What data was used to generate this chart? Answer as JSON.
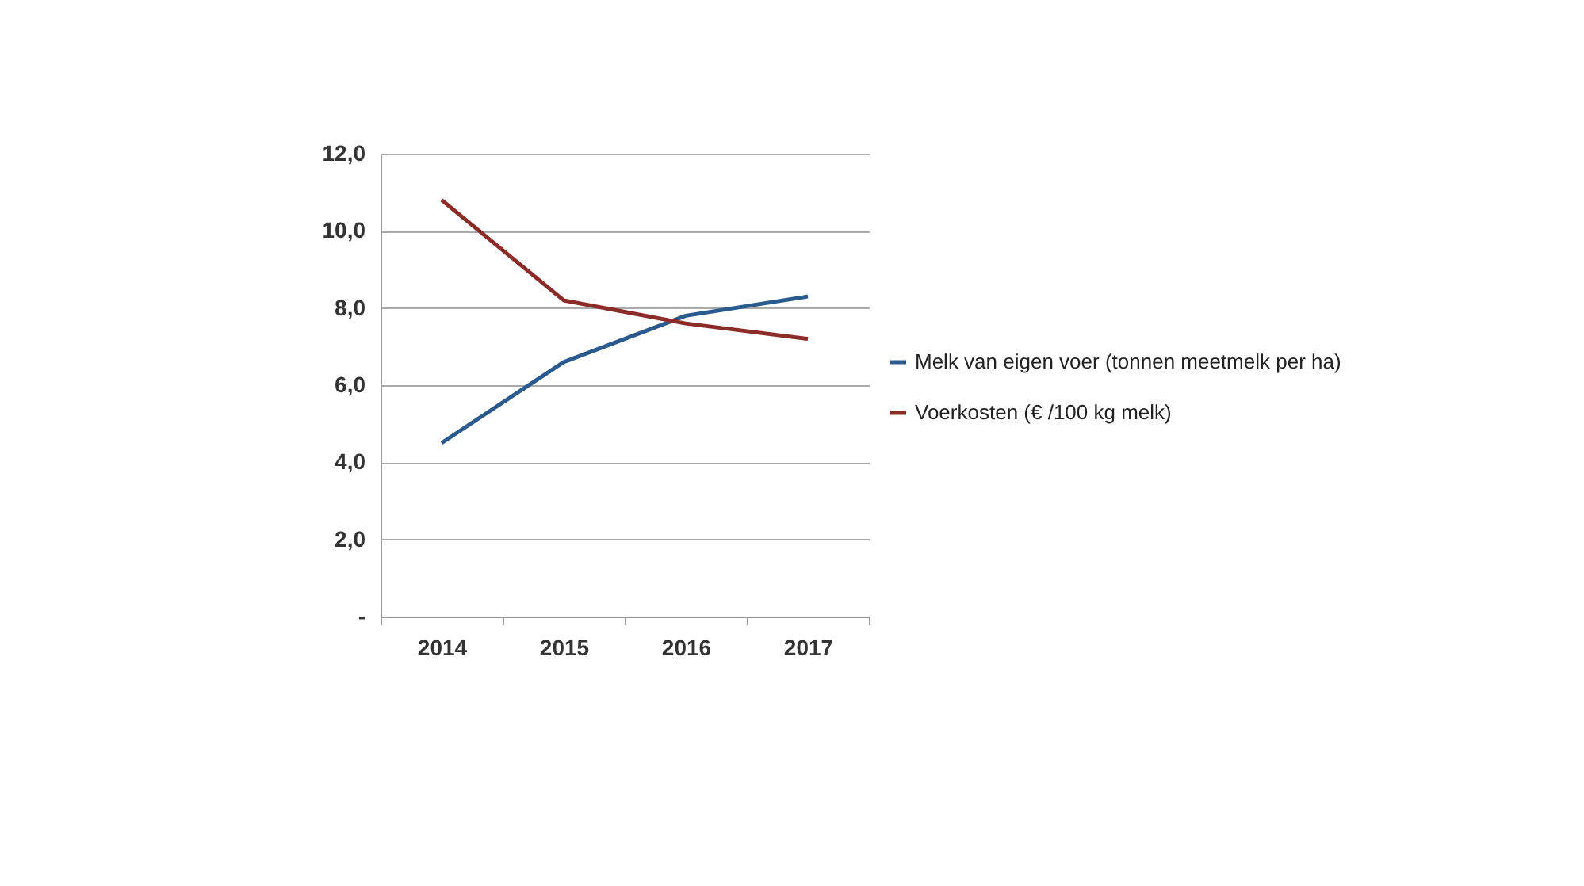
{
  "chart_data": {
    "type": "line",
    "categories": [
      "2014",
      "2015",
      "2016",
      "2017"
    ],
    "series": [
      {
        "name": "Melk van eigen voer (tonnen meetmelk per ha)",
        "color": "#2b5b8e",
        "values": [
          4.5,
          6.6,
          7.8,
          8.3
        ]
      },
      {
        "name": "Voerkosten (€ /100 kg melk)",
        "color": "#8c2c28",
        "values": [
          10.8,
          8.2,
          7.6,
          7.2
        ]
      }
    ],
    "ylim": [
      0,
      12
    ],
    "yticks": [
      {
        "value": 0,
        "label": "-"
      },
      {
        "value": 2,
        "label": "2,0"
      },
      {
        "value": 4,
        "label": "4,0"
      },
      {
        "value": 6,
        "label": "6,0"
      },
      {
        "value": 8,
        "label": "8,0"
      },
      {
        "value": 10,
        "label": "10,0"
      },
      {
        "value": 12,
        "label": "12,0"
      }
    ],
    "grid": "y",
    "legend": "right",
    "marker": "none",
    "line_style": "solid"
  }
}
